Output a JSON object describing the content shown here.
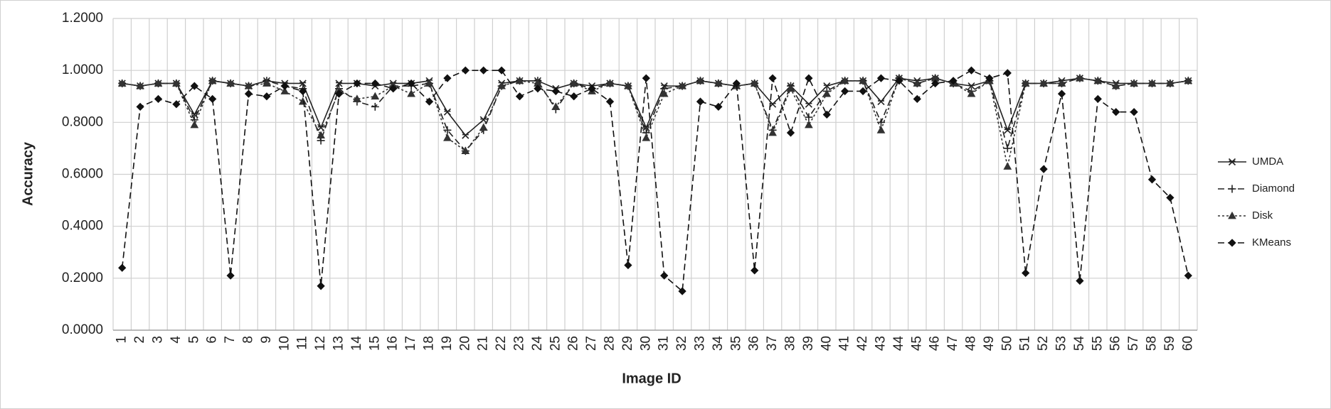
{
  "chart_data": {
    "type": "line",
    "x_label": "Image ID",
    "y_label": "Accuracy",
    "categories": [
      "1",
      "2",
      "3",
      "4",
      "5",
      "6",
      "7",
      "8",
      "9",
      "10",
      "11",
      "12",
      "13",
      "14",
      "15",
      "16",
      "17",
      "18",
      "19",
      "20",
      "21",
      "22",
      "23",
      "24",
      "25",
      "26",
      "27",
      "28",
      "29",
      "30",
      "31",
      "32",
      "33",
      "34",
      "35",
      "36",
      "37",
      "38",
      "39",
      "40",
      "41",
      "42",
      "43",
      "44",
      "45",
      "46",
      "47",
      "48",
      "49",
      "50",
      "51",
      "52",
      "53",
      "54",
      "55",
      "56",
      "57",
      "58",
      "59",
      "60"
    ],
    "series": [
      {
        "name": "UMDA",
        "color": "#222222",
        "dash": "solid",
        "marker": "star",
        "values": [
          0.95,
          0.94,
          0.95,
          0.95,
          0.83,
          0.96,
          0.95,
          0.94,
          0.96,
          0.95,
          0.95,
          0.78,
          0.95,
          0.95,
          0.94,
          0.95,
          0.95,
          0.96,
          0.84,
          0.75,
          0.81,
          0.95,
          0.96,
          0.96,
          0.93,
          0.95,
          0.94,
          0.95,
          0.94,
          0.78,
          0.94,
          0.94,
          0.96,
          0.95,
          0.94,
          0.95,
          0.87,
          0.94,
          0.87,
          0.94,
          0.96,
          0.96,
          0.88,
          0.97,
          0.96,
          0.97,
          0.95,
          0.94,
          0.96,
          0.77,
          0.95,
          0.95,
          0.96,
          0.97,
          0.96,
          0.95,
          0.95,
          0.95,
          0.95,
          0.96
        ]
      },
      {
        "name": "Diamond",
        "color": "#222222",
        "dash": "dashed",
        "marker": "plus",
        "values": [
          0.95,
          0.94,
          0.95,
          0.95,
          0.81,
          0.96,
          0.95,
          0.94,
          0.96,
          0.94,
          0.93,
          0.73,
          0.93,
          0.88,
          0.86,
          0.94,
          0.94,
          0.95,
          0.77,
          0.69,
          0.77,
          0.94,
          0.96,
          0.96,
          0.85,
          0.95,
          0.93,
          0.95,
          0.94,
          0.76,
          0.93,
          0.94,
          0.96,
          0.95,
          0.94,
          0.95,
          0.77,
          0.94,
          0.82,
          0.92,
          0.96,
          0.96,
          0.8,
          0.97,
          0.95,
          0.97,
          0.95,
          0.92,
          0.96,
          0.7,
          0.95,
          0.95,
          0.95,
          0.97,
          0.96,
          0.94,
          0.95,
          0.95,
          0.95,
          0.96
        ]
      },
      {
        "name": "Disk",
        "color": "#333333",
        "dash": "dotted",
        "marker": "triangle",
        "values": [
          0.95,
          0.94,
          0.95,
          0.95,
          0.79,
          0.96,
          0.95,
          0.94,
          0.95,
          0.92,
          0.88,
          0.75,
          0.92,
          0.89,
          0.9,
          0.94,
          0.91,
          0.95,
          0.74,
          0.69,
          0.78,
          0.94,
          0.96,
          0.95,
          0.86,
          0.95,
          0.92,
          0.95,
          0.94,
          0.74,
          0.91,
          0.94,
          0.96,
          0.95,
          0.94,
          0.95,
          0.76,
          0.93,
          0.79,
          0.91,
          0.96,
          0.96,
          0.77,
          0.97,
          0.95,
          0.97,
          0.95,
          0.91,
          0.96,
          0.63,
          0.95,
          0.95,
          0.95,
          0.97,
          0.96,
          0.94,
          0.95,
          0.95,
          0.95,
          0.96
        ]
      },
      {
        "name": "KMeans",
        "color": "#111111",
        "dash": "dashed",
        "marker": "diamond",
        "values": [
          0.24,
          0.86,
          0.89,
          0.87,
          0.94,
          0.89,
          0.21,
          0.91,
          0.9,
          0.94,
          0.92,
          0.17,
          0.91,
          0.95,
          0.95,
          0.93,
          0.95,
          0.88,
          0.97,
          1.0,
          1.0,
          1.0,
          0.9,
          0.93,
          0.92,
          0.9,
          0.93,
          0.88,
          0.25,
          0.97,
          0.21,
          0.15,
          0.88,
          0.86,
          0.95,
          0.23,
          0.97,
          0.76,
          0.97,
          0.83,
          0.92,
          0.92,
          0.97,
          0.96,
          0.89,
          0.95,
          0.96,
          1.0,
          0.97,
          0.99,
          0.22,
          0.62,
          0.91,
          0.19,
          0.89,
          0.84,
          0.84,
          0.58,
          0.51,
          0.21
        ]
      }
    ],
    "ylim": [
      0,
      1.2
    ],
    "yticks": [
      {
        "value": 0,
        "label": "0.0000"
      },
      {
        "value": 0.2,
        "label": "0.2000"
      },
      {
        "value": 0.4,
        "label": "0.4000"
      },
      {
        "value": 0.6,
        "label": "0.6000"
      },
      {
        "value": 0.8,
        "label": "0.8000"
      },
      {
        "value": 1.0,
        "label": "1.0000"
      },
      {
        "value": 1.2,
        "label": "1.2000"
      }
    ],
    "grid": true,
    "legend": "right"
  }
}
